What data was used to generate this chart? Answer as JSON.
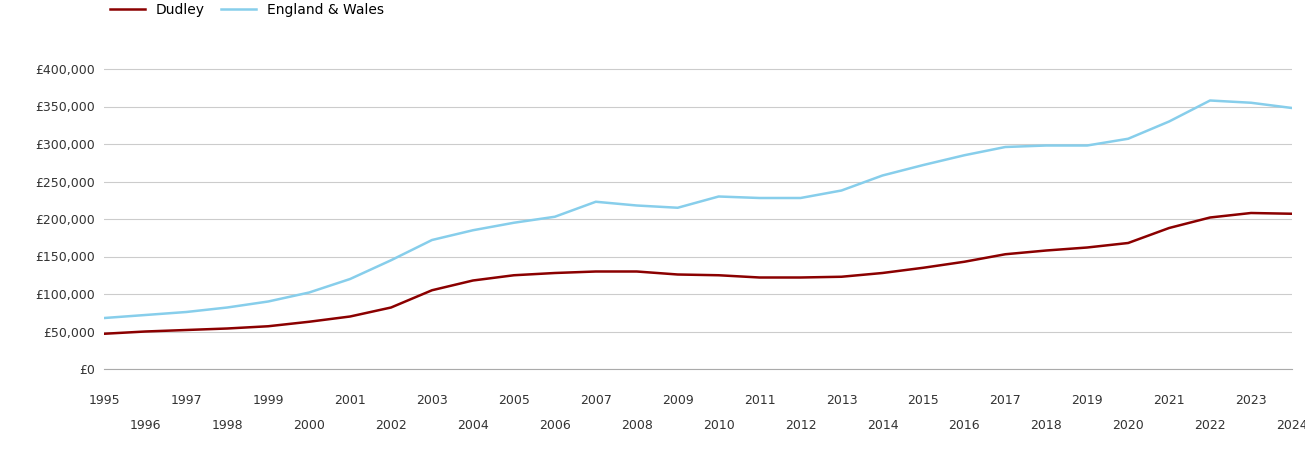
{
  "years": [
    1995,
    1996,
    1997,
    1998,
    1999,
    2000,
    2001,
    2002,
    2003,
    2004,
    2005,
    2006,
    2007,
    2008,
    2009,
    2010,
    2011,
    2012,
    2013,
    2014,
    2015,
    2016,
    2017,
    2018,
    2019,
    2020,
    2021,
    2022,
    2023,
    2024
  ],
  "dudley": [
    47000,
    50000,
    52000,
    54000,
    57000,
    63000,
    70000,
    82000,
    105000,
    118000,
    125000,
    128000,
    130000,
    130000,
    126000,
    125000,
    122000,
    122000,
    123000,
    128000,
    135000,
    143000,
    153000,
    158000,
    162000,
    168000,
    188000,
    202000,
    208000,
    207000
  ],
  "england_wales": [
    68000,
    72000,
    76000,
    82000,
    90000,
    102000,
    120000,
    145000,
    172000,
    185000,
    195000,
    203000,
    223000,
    218000,
    215000,
    230000,
    228000,
    228000,
    238000,
    258000,
    272000,
    285000,
    296000,
    298000,
    298000,
    307000,
    330000,
    358000,
    355000,
    348000
  ],
  "dudley_color": "#8b0000",
  "ew_color": "#87CEEB",
  "background_color": "#ffffff",
  "grid_color": "#cccccc",
  "ylim": [
    0,
    420000
  ],
  "yticks": [
    0,
    50000,
    100000,
    150000,
    200000,
    250000,
    300000,
    350000,
    400000
  ],
  "legend_labels": [
    "Dudley",
    "England & Wales"
  ],
  "xlabel": "",
  "ylabel": ""
}
